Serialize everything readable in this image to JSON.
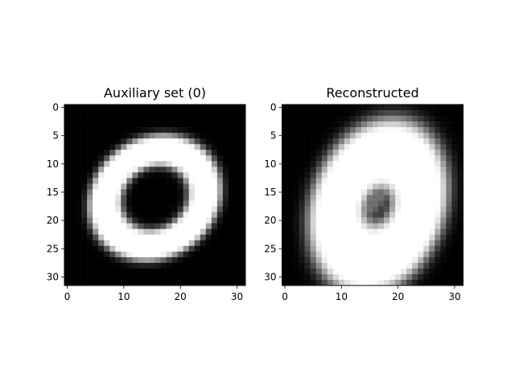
{
  "chart_data": [
    {
      "type": "heatmap",
      "title": "Auxiliary set (0)",
      "colormap": "gray",
      "grid_size": 32,
      "xlim": [
        -0.5,
        31.5
      ],
      "ylim": [
        31.5,
        -0.5
      ],
      "xticks": [
        0,
        10,
        20,
        30
      ],
      "yticks": [
        0,
        5,
        10,
        15,
        20,
        25,
        30
      ],
      "xtick_labels": [
        "0",
        "10",
        "20",
        "30"
      ],
      "ytick_labels": [
        "0",
        "5",
        "10",
        "15",
        "20",
        "25",
        "30"
      ],
      "grid": false,
      "image_description": "Handwritten zero: thin bright loop, tilted, wider at top-right, left edge has a point near x=5,y=16",
      "shape": {
        "kind": "loop",
        "center": [
          15.5,
          16.0
        ],
        "radii": [
          9.2,
          8.0
        ],
        "rotation_deg": -35,
        "stroke_width": 1.6,
        "intensity": 1.0,
        "blur": 0.9
      }
    },
    {
      "type": "heatmap",
      "title": "Reconstructed",
      "colormap": "gray",
      "grid_size": 32,
      "xlim": [
        -0.5,
        31.5
      ],
      "ylim": [
        31.5,
        -0.5
      ],
      "xticks": [
        0,
        10,
        20,
        30
      ],
      "yticks": [
        0,
        5,
        10,
        15,
        20,
        25,
        30
      ],
      "xtick_labels": [
        "0",
        "10",
        "20",
        "30"
      ],
      "ytick_labels": [
        "0",
        "5",
        "10",
        "15",
        "20",
        "25",
        "30"
      ],
      "grid": false,
      "image_description": "Blurry reconstructed zero: thick bright oval tilted, grey diagonal smear in the centre",
      "shape": {
        "kind": "thick-oval",
        "center": [
          16.5,
          17.5
        ],
        "radii": [
          7.0,
          9.5
        ],
        "rotation_deg": 20,
        "stroke_width": 3.0,
        "intensity": 1.0,
        "blur": 1.6,
        "inner_smear": {
          "from": [
            13.0,
            20.0
          ],
          "to": [
            19.0,
            13.0
          ],
          "width": 1.6,
          "intensity": 0.45
        }
      }
    }
  ]
}
